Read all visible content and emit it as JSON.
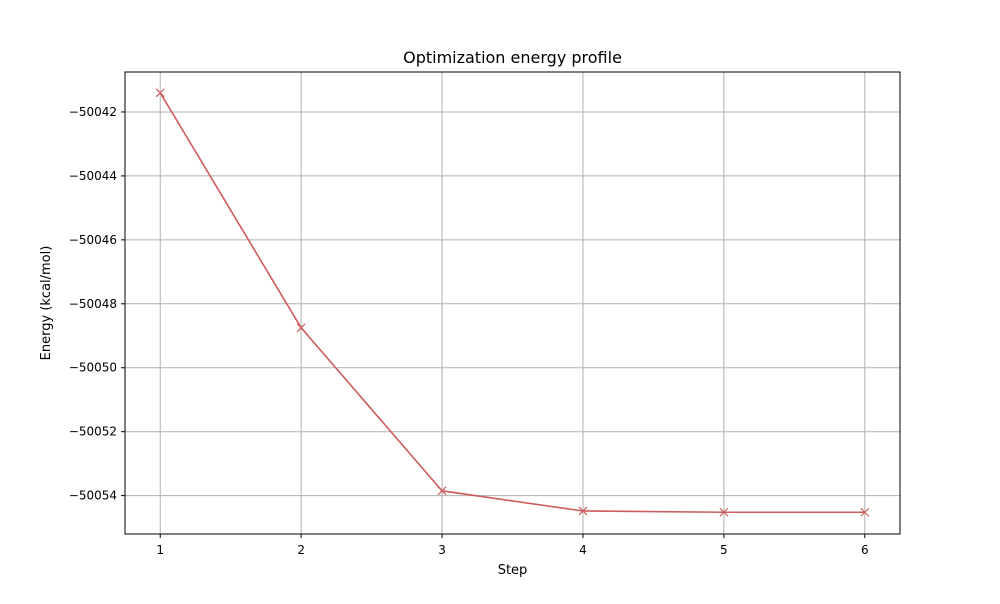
{
  "chart_data": {
    "type": "line",
    "title": "Optimization energy profile",
    "xlabel": "Step",
    "ylabel": "Energy (kcal/mol)",
    "x": [
      1,
      2,
      3,
      4,
      5,
      6
    ],
    "series": [
      {
        "values": [
          -50041.4,
          -50048.75,
          -50053.85,
          -50054.48,
          -50054.52,
          -50054.52
        ],
        "color": "#cd5c5c",
        "marker": "x"
      }
    ],
    "xlim": [
      0.75,
      6.25
    ],
    "ylim": [
      -50055.2,
      -50040.75
    ],
    "xticks": [
      1,
      2,
      3,
      4,
      5,
      6
    ],
    "xtick_labels": [
      "1",
      "2",
      "3",
      "4",
      "5",
      "6"
    ],
    "yticks": [
      -50054,
      -50052,
      -50050,
      -50048,
      -50046,
      -50044,
      -50042
    ],
    "ytick_labels": [
      "−50054",
      "−50052",
      "−50050",
      "−50048",
      "−50046",
      "−50044",
      "−50042"
    ],
    "grid": true,
    "grid_color": "#b0b0b0",
    "legend": false
  }
}
